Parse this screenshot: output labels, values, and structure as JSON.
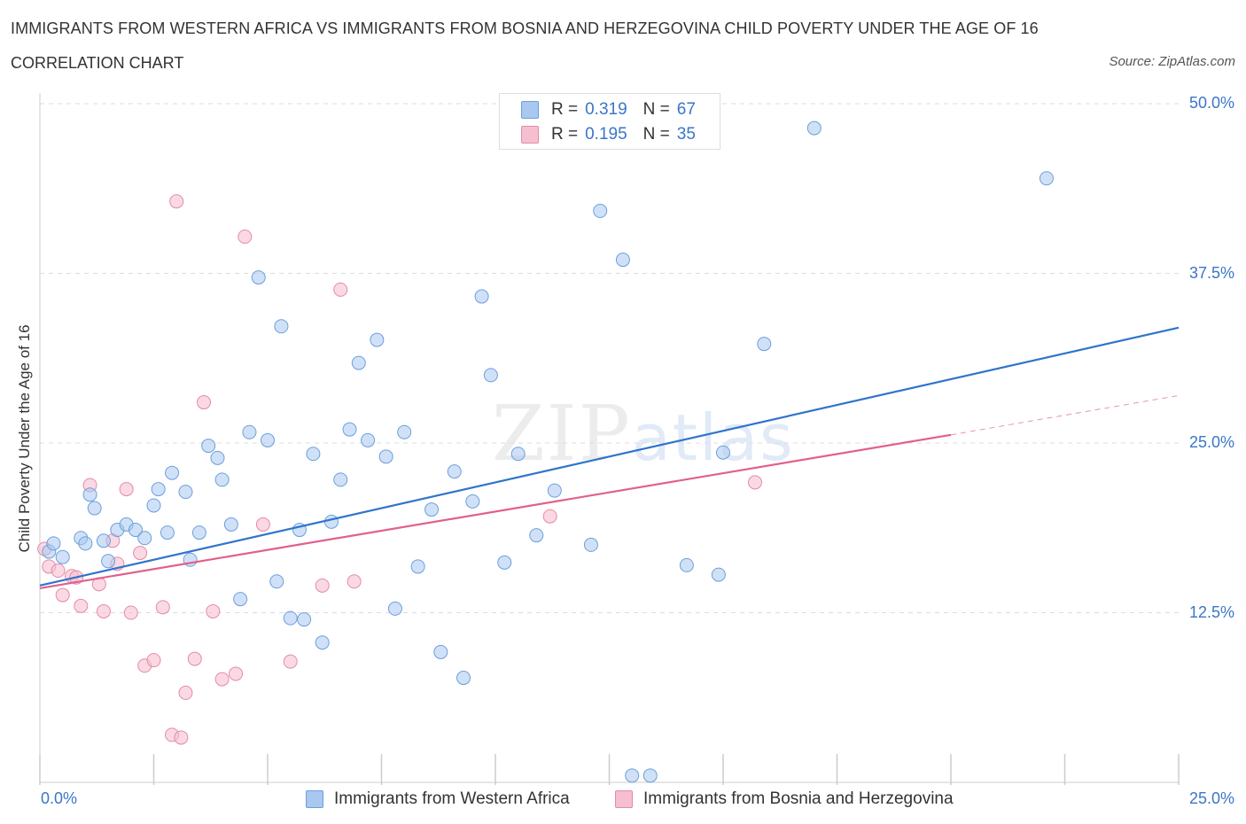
{
  "title": "IMMIGRANTS FROM WESTERN AFRICA VS IMMIGRANTS FROM BOSNIA AND HERZEGOVINA CHILD POVERTY UNDER THE AGE OF 16",
  "subtitle": "CORRELATION CHART",
  "source": "Source: ZipAtlas.com",
  "watermark": {
    "zip": "ZIP",
    "atlas": "atlas"
  },
  "legend": {
    "rows": [
      {
        "r_label": "R =",
        "r_value": "0.319",
        "n_label": "N =",
        "n_value": "67"
      },
      {
        "r_label": "R =",
        "r_value": "0.195",
        "n_label": "N =",
        "n_value": "35"
      }
    ]
  },
  "bottom_legend": {
    "series1": "Immigrants from Western Africa",
    "series2": "Immigrants from Bosnia and Herzegovina"
  },
  "colors": {
    "blue_fill": "#a9c8f0",
    "blue_stroke": "#6a9fdc",
    "blue_line": "#2f74cc",
    "pink_fill": "#f6bfd0",
    "pink_stroke": "#e58aa8",
    "pink_line": "#e0608c",
    "tick_text": "#3a76c8",
    "grid": "#dddddd"
  },
  "chart_data": {
    "type": "scatter",
    "title": "IMMIGRANTS FROM WESTERN AFRICA VS IMMIGRANTS FROM BOSNIA AND HERZEGOVINA CHILD POVERTY UNDER THE AGE OF 16",
    "xlabel": "",
    "ylabel": "Child Poverty Under the Age of 16",
    "xlim": [
      0,
      25
    ],
    "ylim": [
      0,
      50
    ],
    "x_tick_labels": [
      "0.0%",
      "25.0%"
    ],
    "y_ticks": [
      12.5,
      25.0,
      37.5,
      50.0
    ],
    "y_tick_labels": [
      "12.5%",
      "25.0%",
      "37.5%",
      "50.0%"
    ],
    "grid": true,
    "legend_position": "top-center",
    "series": [
      {
        "name": "Immigrants from Western Africa",
        "color": "blue",
        "r": 0.319,
        "n": 67,
        "trend": {
          "x": [
            0,
            25
          ],
          "y": [
            14.5,
            33.5
          ]
        },
        "points": [
          [
            0.2,
            17.0
          ],
          [
            0.3,
            17.6
          ],
          [
            0.5,
            16.6
          ],
          [
            0.9,
            18.0
          ],
          [
            1.0,
            17.6
          ],
          [
            1.1,
            21.2
          ],
          [
            1.2,
            20.2
          ],
          [
            1.4,
            17.8
          ],
          [
            1.5,
            16.3
          ],
          [
            1.7,
            18.6
          ],
          [
            1.9,
            19.0
          ],
          [
            2.1,
            18.6
          ],
          [
            2.3,
            18.0
          ],
          [
            2.5,
            20.4
          ],
          [
            2.6,
            21.6
          ],
          [
            2.8,
            18.4
          ],
          [
            2.9,
            22.8
          ],
          [
            3.2,
            21.4
          ],
          [
            3.3,
            16.4
          ],
          [
            3.5,
            18.4
          ],
          [
            3.7,
            24.8
          ],
          [
            3.9,
            23.9
          ],
          [
            4.0,
            22.3
          ],
          [
            4.2,
            19.0
          ],
          [
            4.4,
            13.5
          ],
          [
            4.6,
            25.8
          ],
          [
            4.8,
            37.2
          ],
          [
            5.0,
            25.2
          ],
          [
            5.2,
            14.8
          ],
          [
            5.3,
            33.6
          ],
          [
            5.5,
            12.1
          ],
          [
            5.7,
            18.6
          ],
          [
            5.8,
            12.0
          ],
          [
            6.0,
            24.2
          ],
          [
            6.2,
            10.3
          ],
          [
            6.4,
            19.2
          ],
          [
            6.6,
            22.3
          ],
          [
            6.8,
            26.0
          ],
          [
            7.0,
            30.9
          ],
          [
            7.2,
            25.2
          ],
          [
            7.4,
            32.6
          ],
          [
            7.6,
            24.0
          ],
          [
            7.8,
            12.8
          ],
          [
            8.0,
            25.8
          ],
          [
            8.3,
            15.9
          ],
          [
            8.6,
            20.1
          ],
          [
            8.8,
            9.6
          ],
          [
            9.1,
            22.9
          ],
          [
            9.3,
            7.7
          ],
          [
            9.5,
            20.7
          ],
          [
            9.7,
            35.8
          ],
          [
            9.9,
            30.0
          ],
          [
            10.2,
            16.2
          ],
          [
            10.5,
            24.2
          ],
          [
            10.9,
            18.2
          ],
          [
            11.3,
            21.5
          ],
          [
            12.1,
            17.5
          ],
          [
            12.3,
            42.1
          ],
          [
            12.8,
            38.5
          ],
          [
            13.0,
            0.5
          ],
          [
            13.4,
            0.5
          ],
          [
            14.2,
            16.0
          ],
          [
            14.9,
            15.3
          ],
          [
            15.0,
            24.3
          ],
          [
            15.9,
            32.3
          ],
          [
            17.0,
            48.2
          ],
          [
            22.1,
            44.5
          ]
        ]
      },
      {
        "name": "Immigrants from Bosnia and Herzegovina",
        "color": "pink",
        "r": 0.195,
        "n": 35,
        "trend": {
          "x": [
            0,
            20
          ],
          "y": [
            14.3,
            25.6
          ],
          "dash_to": {
            "x": 25,
            "y": 28.5
          }
        },
        "points": [
          [
            0.1,
            17.2
          ],
          [
            0.2,
            15.9
          ],
          [
            0.4,
            15.6
          ],
          [
            0.5,
            13.8
          ],
          [
            0.7,
            15.2
          ],
          [
            0.8,
            15.1
          ],
          [
            0.9,
            13.0
          ],
          [
            1.1,
            21.9
          ],
          [
            1.3,
            14.6
          ],
          [
            1.4,
            12.6
          ],
          [
            1.6,
            17.8
          ],
          [
            1.7,
            16.1
          ],
          [
            1.9,
            21.6
          ],
          [
            2.0,
            12.5
          ],
          [
            2.2,
            16.9
          ],
          [
            2.3,
            8.6
          ],
          [
            2.5,
            9.0
          ],
          [
            2.7,
            12.9
          ],
          [
            2.9,
            3.5
          ],
          [
            3.0,
            42.8
          ],
          [
            3.1,
            3.3
          ],
          [
            3.2,
            6.6
          ],
          [
            3.4,
            9.1
          ],
          [
            3.6,
            28.0
          ],
          [
            3.8,
            12.6
          ],
          [
            4.0,
            7.6
          ],
          [
            4.3,
            8.0
          ],
          [
            4.5,
            40.2
          ],
          [
            4.9,
            19.0
          ],
          [
            5.5,
            8.9
          ],
          [
            6.2,
            14.5
          ],
          [
            6.6,
            36.3
          ],
          [
            6.9,
            14.8
          ],
          [
            11.2,
            19.6
          ],
          [
            15.7,
            22.1
          ]
        ]
      }
    ]
  }
}
